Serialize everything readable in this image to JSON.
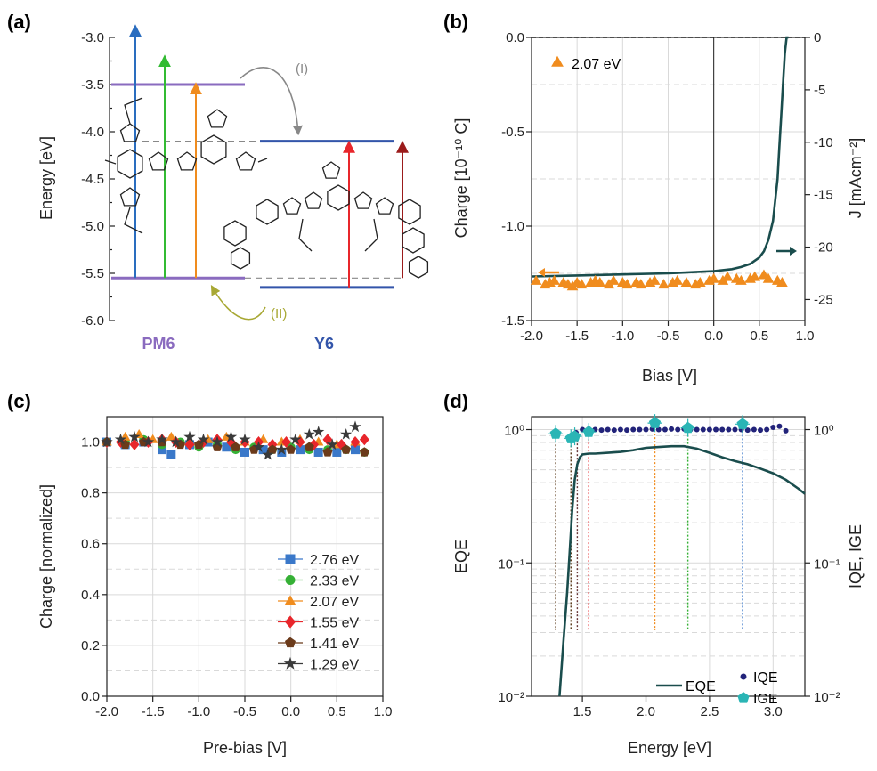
{
  "panels": {
    "a": {
      "label": "(a)",
      "ylabel": "Energy [eV]",
      "yticks": [
        "-3.0",
        "-3.5",
        "-4.0",
        "-4.5",
        "-5.0",
        "-5.5",
        "-6.0"
      ],
      "pm6_label": "PM6",
      "y6_label": "Y6",
      "transfer_I": "(I)",
      "transfer_II": "(II)",
      "colors": {
        "pm6": "#8a6bbf",
        "y6": "#3355aa",
        "blue": "#2a6dbf",
        "green": "#33bb33",
        "orange": "#f08c1e",
        "red": "#e8262b",
        "darkred": "#9b1b1b",
        "arrowI": "#888888",
        "arrowII": "#a8a834"
      }
    },
    "b": {
      "label": "(b)",
      "xlabel": "Bias [V]",
      "ylabel_left": "Charge [10⁻¹⁰ C]",
      "ylabel_right": "J [mAcm⁻²]",
      "legend": "2.07 eV"
    },
    "c": {
      "label": "(c)",
      "xlabel": "Pre-bias [V]",
      "ylabel": "Charge [normalized]"
    },
    "d": {
      "label": "(d)",
      "xlabel": "Energy [eV]",
      "ylabel_left": "EQE",
      "ylabel_right": "IQE, IGE",
      "legend_eqe": "EQE",
      "legend_iqe": "IQE",
      "legend_ige": "IGE"
    }
  },
  "chart_data": [
    {
      "panel": "a",
      "type": "diagram",
      "ylim": [
        -6.0,
        -3.0
      ],
      "levels": [
        {
          "material": "PM6",
          "kind": "LUMO",
          "energy": -3.5
        },
        {
          "material": "PM6",
          "kind": "HOMO",
          "energy": -5.55
        },
        {
          "material": "Y6",
          "kind": "LUMO",
          "energy": -4.1
        },
        {
          "material": "Y6",
          "kind": "HOMO",
          "energy": -5.65
        }
      ]
    },
    {
      "panel": "b",
      "type": "scatter",
      "xlim": [
        -2.0,
        1.0
      ],
      "ylim": [
        -1.5,
        0.0
      ],
      "y2lim": [
        -27,
        0
      ],
      "xticks": [
        "-2.0",
        "-1.5",
        "-1.0",
        "-0.5",
        "0.0",
        "0.5",
        "1.0"
      ],
      "yticks": [
        "0.0",
        "-0.5",
        "-1.0",
        "-1.5"
      ],
      "y2ticks": [
        "0",
        "-5",
        "-10",
        "-15",
        "-20",
        "-25"
      ],
      "series": [
        {
          "name": "2.07 eV",
          "color": "#f08c1e",
          "axis": "left",
          "x": [
            -1.95,
            -1.85,
            -1.8,
            -1.75,
            -1.65,
            -1.6,
            -1.55,
            -1.5,
            -1.45,
            -1.35,
            -1.3,
            -1.25,
            -1.15,
            -1.1,
            -1.0,
            -0.95,
            -0.85,
            -0.8,
            -0.7,
            -0.65,
            -0.55,
            -0.45,
            -0.4,
            -0.3,
            -0.2,
            -0.15,
            -0.05,
            0.0,
            0.1,
            0.15,
            0.25,
            0.3,
            0.4,
            0.45,
            0.55,
            0.6,
            0.7,
            0.75
          ],
          "y": [
            -1.29,
            -1.31,
            -1.3,
            -1.29,
            -1.3,
            -1.31,
            -1.32,
            -1.3,
            -1.31,
            -1.3,
            -1.29,
            -1.3,
            -1.31,
            -1.29,
            -1.3,
            -1.31,
            -1.3,
            -1.31,
            -1.3,
            -1.29,
            -1.31,
            -1.3,
            -1.29,
            -1.3,
            -1.31,
            -1.3,
            -1.29,
            -1.28,
            -1.29,
            -1.27,
            -1.28,
            -1.29,
            -1.28,
            -1.27,
            -1.26,
            -1.28,
            -1.29,
            -1.3
          ]
        },
        {
          "name": "J",
          "color": "#1a4d4d",
          "axis": "right",
          "x": [
            -2.0,
            -1.5,
            -1.0,
            -0.5,
            0.0,
            0.2,
            0.3,
            0.4,
            0.5,
            0.55,
            0.6,
            0.65,
            0.7,
            0.72,
            0.74,
            0.76,
            0.78,
            0.8,
            0.82
          ],
          "y": [
            -22.8,
            -22.7,
            -22.6,
            -22.5,
            -22.3,
            -22.1,
            -21.9,
            -21.6,
            -21.0,
            -20.4,
            -19.3,
            -17.5,
            -13.5,
            -10.5,
            -7.5,
            -4.5,
            -1.5,
            0.0,
            0.0
          ]
        }
      ]
    },
    {
      "panel": "c",
      "type": "scatter",
      "xlim": [
        -2.0,
        1.0
      ],
      "ylim": [
        0.0,
        1.1
      ],
      "xticks": [
        "-2.0",
        "-1.5",
        "-1.0",
        "-0.5",
        "0.0",
        "0.5",
        "1.0"
      ],
      "yticks": [
        "0.0",
        "0.2",
        "0.4",
        "0.6",
        "0.8",
        "1.0"
      ],
      "series": [
        {
          "name": "2.76 eV",
          "color": "#3a78c9",
          "marker": "square",
          "x": [
            -2.0,
            -1.8,
            -1.6,
            -1.4,
            -1.3,
            -1.1,
            -0.9,
            -0.7,
            -0.5,
            -0.3,
            -0.1,
            0.1,
            0.3,
            0.5,
            0.7
          ],
          "y": [
            1.0,
            0.99,
            1.0,
            0.97,
            0.95,
            0.99,
            1.0,
            0.98,
            0.96,
            0.97,
            0.96,
            0.97,
            0.96,
            0.96,
            0.97
          ]
        },
        {
          "name": "2.33 eV",
          "color": "#35b035",
          "marker": "circle",
          "x": [
            -2.0,
            -1.8,
            -1.6,
            -1.4,
            -1.2,
            -1.0,
            -0.8,
            -0.6,
            -0.4,
            -0.2,
            0.0,
            0.2,
            0.4,
            0.6,
            0.8
          ],
          "y": [
            1.0,
            1.0,
            1.01,
            0.99,
            1.0,
            0.98,
            0.99,
            0.97,
            0.98,
            0.97,
            0.98,
            0.97,
            0.97,
            0.97,
            0.96
          ]
        },
        {
          "name": "2.07 eV",
          "color": "#f08c1e",
          "marker": "triangle",
          "x": [
            -2.0,
            -1.8,
            -1.65,
            -1.5,
            -1.3,
            -1.1,
            -0.9,
            -0.7,
            -0.5,
            -0.3,
            -0.1,
            0.1,
            0.3,
            0.5,
            0.7
          ],
          "y": [
            1.0,
            1.02,
            1.03,
            1.01,
            1.02,
            1.0,
            1.01,
            1.02,
            1.0,
            1.01,
            1.0,
            1.01,
            1.0,
            0.99,
            1.0
          ]
        },
        {
          "name": "1.55 eV",
          "color": "#e8262b",
          "marker": "diamond",
          "x": [
            -2.0,
            -1.85,
            -1.7,
            -1.55,
            -1.4,
            -1.25,
            -1.1,
            -0.95,
            -0.8,
            -0.65,
            -0.5,
            -0.35,
            -0.2,
            -0.05,
            0.1,
            0.25,
            0.4,
            0.55,
            0.7,
            0.8
          ],
          "y": [
            1.0,
            1.0,
            0.99,
            1.0,
            1.01,
            1.0,
            0.99,
            1.0,
            1.01,
            1.0,
            1.0,
            1.0,
            0.99,
            1.0,
            1.0,
            0.99,
            1.01,
            0.99,
            1.0,
            1.01
          ]
        },
        {
          "name": "1.41 eV",
          "color": "#6b3a1a",
          "marker": "pentagon",
          "x": [
            -2.0,
            -1.8,
            -1.6,
            -1.4,
            -1.2,
            -1.0,
            -0.8,
            -0.6,
            -0.4,
            -0.2,
            0.0,
            0.2,
            0.4,
            0.6,
            0.8
          ],
          "y": [
            1.0,
            0.99,
            1.0,
            1.0,
            0.99,
            0.99,
            0.98,
            0.98,
            0.97,
            0.97,
            0.97,
            0.98,
            0.96,
            0.97,
            0.96
          ]
        },
        {
          "name": "1.29 eV",
          "color": "#3a3a3a",
          "marker": "star",
          "x": [
            -2.0,
            -1.85,
            -1.7,
            -1.55,
            -1.4,
            -1.25,
            -1.1,
            -0.95,
            -0.8,
            -0.65,
            -0.5,
            -0.35,
            -0.25,
            -0.1,
            0.05,
            0.2,
            0.3,
            0.45,
            0.6,
            0.7
          ],
          "y": [
            1.0,
            1.01,
            1.02,
            1.0,
            1.01,
            1.0,
            1.02,
            1.01,
            1.0,
            1.02,
            1.01,
            0.98,
            0.95,
            0.97,
            1.01,
            1.03,
            1.04,
            0.99,
            1.03,
            1.06
          ]
        }
      ]
    },
    {
      "panel": "d",
      "type": "line",
      "yscale": "log",
      "xlim": [
        1.1,
        3.25
      ],
      "ylim": [
        0.01,
        1.25
      ],
      "xticks": [
        "1.5",
        "2.0",
        "2.5",
        "3.0"
      ],
      "yticks": [
        "10⁻²",
        "10⁻¹",
        "10⁰"
      ],
      "yticks_right": [
        "10⁻²",
        "10⁻¹",
        "10⁰"
      ],
      "series": [
        {
          "name": "EQE",
          "color": "#1a4d4d",
          "x": [
            1.32,
            1.35,
            1.38,
            1.4,
            1.42,
            1.44,
            1.46,
            1.48,
            1.5,
            1.55,
            1.6,
            1.7,
            1.8,
            1.9,
            2.0,
            2.1,
            2.2,
            2.3,
            2.4,
            2.5,
            2.6,
            2.7,
            2.8,
            2.9,
            3.0,
            3.1,
            3.2,
            3.25
          ],
          "y": [
            0.01,
            0.025,
            0.06,
            0.12,
            0.25,
            0.42,
            0.55,
            0.62,
            0.65,
            0.66,
            0.66,
            0.67,
            0.68,
            0.7,
            0.73,
            0.74,
            0.75,
            0.75,
            0.72,
            0.67,
            0.62,
            0.58,
            0.55,
            0.51,
            0.47,
            0.42,
            0.36,
            0.33
          ]
        },
        {
          "name": "IQE",
          "color": "#22237a",
          "x": [
            1.45,
            1.5,
            1.55,
            1.6,
            1.65,
            1.7,
            1.75,
            1.8,
            1.85,
            1.9,
            1.95,
            2.0,
            2.05,
            2.1,
            2.15,
            2.2,
            2.25,
            2.3,
            2.35,
            2.4,
            2.45,
            2.5,
            2.55,
            2.6,
            2.65,
            2.7,
            2.75,
            2.8,
            2.85,
            2.9,
            2.95,
            3.0,
            3.05,
            3.1
          ],
          "y": [
            0.95,
            1.0,
            1.01,
            1.0,
            0.99,
            1.0,
            0.99,
            1.0,
            0.99,
            1.0,
            1.0,
            1.0,
            1.01,
            1.0,
            1.0,
            1.01,
            1.0,
            1.01,
            1.0,
            1.0,
            1.0,
            1.0,
            1.0,
            1.0,
            1.0,
            1.0,
            1.0,
            0.99,
            1.0,
            0.99,
            1.0,
            1.04,
            1.06,
            0.98
          ]
        },
        {
          "name": "IGE",
          "color": "#2ab5b5",
          "x": [
            1.29,
            1.41,
            1.44,
            1.55,
            2.07,
            2.33,
            2.76
          ],
          "y": [
            0.93,
            0.86,
            0.89,
            0.96,
            1.12,
            1.03,
            1.1
          ]
        }
      ],
      "dotted_markers": [
        {
          "x": 1.29,
          "color": "#5a3a1a"
        },
        {
          "x": 1.41,
          "color": "#5a3a1a"
        },
        {
          "x": 1.46,
          "color": "#6a3a3a"
        },
        {
          "x": 1.55,
          "color": "#e8262b"
        },
        {
          "x": 2.07,
          "color": "#f08c1e"
        },
        {
          "x": 2.33,
          "color": "#35b035"
        },
        {
          "x": 2.76,
          "color": "#3a78c9"
        }
      ]
    }
  ]
}
